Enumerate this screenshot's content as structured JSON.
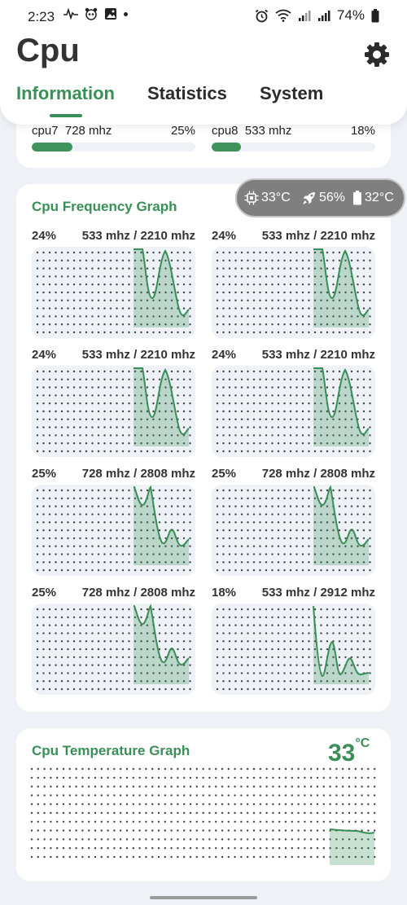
{
  "status_bar": {
    "time": "2:23",
    "battery": "74%"
  },
  "app": {
    "title": "Cpu"
  },
  "tabs": [
    {
      "label": "Information",
      "active": true
    },
    {
      "label": "Statistics",
      "active": false
    },
    {
      "label": "System",
      "active": false
    }
  ],
  "cores": [
    {
      "label": "cpu7  728 mhz",
      "percent": "25%",
      "fill": 0.25
    },
    {
      "label": "cpu8  533 mhz",
      "percent": "18%",
      "fill": 0.18
    }
  ],
  "freq_graph": {
    "title": "Cpu Frequency Graph",
    "graphs": [
      {
        "percent": "24%",
        "freq": "533 mhz",
        "max": "2210 mhz",
        "curve": "a"
      },
      {
        "percent": "24%",
        "freq": "533 mhz",
        "max": "2210 mhz",
        "curve": "a"
      },
      {
        "percent": "24%",
        "freq": "533 mhz",
        "max": "2210 mhz",
        "curve": "a"
      },
      {
        "percent": "24%",
        "freq": "533 mhz",
        "max": "2210 mhz",
        "curve": "a"
      },
      {
        "percent": "25%",
        "freq": "728 mhz",
        "max": "2808 mhz",
        "curve": "b"
      },
      {
        "percent": "25%",
        "freq": "728 mhz",
        "max": "2808 mhz",
        "curve": "b"
      },
      {
        "percent": "25%",
        "freq": "728 mhz",
        "max": "2808 mhz",
        "curve": "b"
      },
      {
        "percent": "18%",
        "freq": "533 mhz",
        "max": "2912 mhz",
        "curve": "c"
      }
    ]
  },
  "overlay": {
    "cpu_temp": "33°C",
    "load": "56%",
    "battery_temp": "32°C"
  },
  "temp_graph": {
    "title": "Cpu Temperature Graph",
    "value": "33",
    "unit": "°C"
  },
  "colors": {
    "accent": "#3a8f58",
    "fill": "#3d9359",
    "background": "#eef1f5"
  }
}
